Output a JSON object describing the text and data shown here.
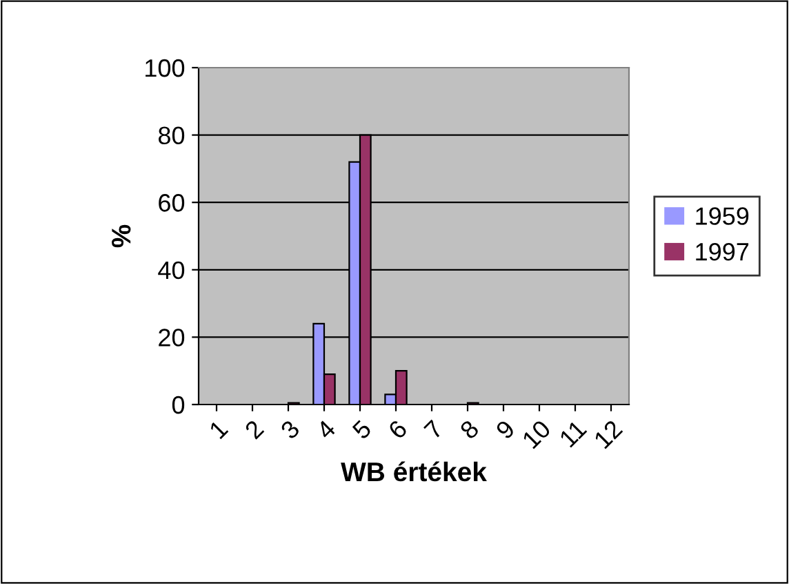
{
  "chart_data": {
    "type": "bar",
    "xlabel": "WB értékek",
    "ylabel": "%",
    "categories": [
      "1",
      "2",
      "3",
      "4",
      "5",
      "6",
      "7",
      "8",
      "9",
      "10",
      "11",
      "12"
    ],
    "series": [
      {
        "name": "1959",
        "color": "#9999ff",
        "values": [
          0,
          0,
          0,
          24,
          72,
          3,
          0,
          0,
          0,
          0,
          0,
          0
        ]
      },
      {
        "name": "1997",
        "color": "#993366",
        "values": [
          0,
          0,
          0.5,
          9,
          80,
          10,
          0,
          0.5,
          0,
          0,
          0,
          0
        ]
      }
    ],
    "ylim": [
      0,
      100
    ],
    "yticks": [
      0,
      20,
      40,
      60,
      80,
      100
    ],
    "grid": "y",
    "legend": "right"
  }
}
